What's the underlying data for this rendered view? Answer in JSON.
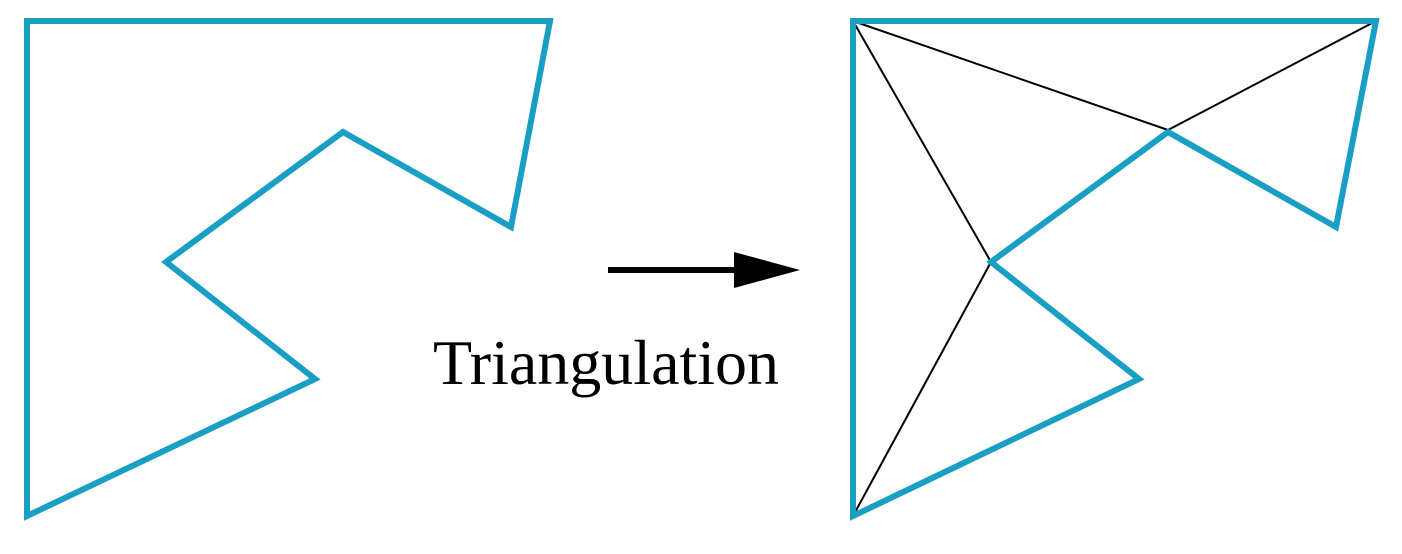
{
  "caption": "Triangulation",
  "colors": {
    "polygon_edge": "#1a9fc4",
    "diagonal": "#000000",
    "arrow": "#000000",
    "text": "#000000",
    "background": "#ffffff"
  },
  "icons": {
    "arrow": "right-arrow-icon"
  }
}
